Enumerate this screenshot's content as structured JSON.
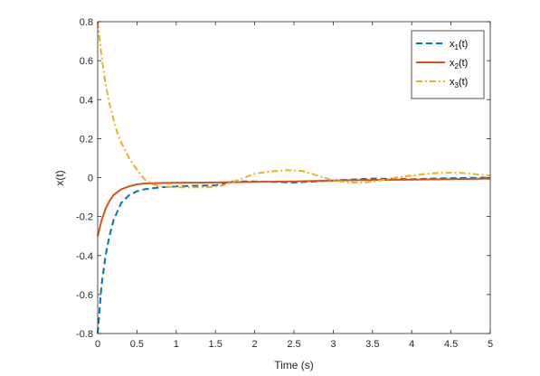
{
  "chart_data": {
    "type": "line",
    "title": "",
    "xlabel": "Time (s)",
    "ylabel": "x(t)",
    "xlim": [
      0,
      5
    ],
    "ylim": [
      -0.8,
      0.8
    ],
    "xticks": [
      "0",
      "0.5",
      "1",
      "1.5",
      "2",
      "2.5",
      "3",
      "3.5",
      "4",
      "4.5",
      "5"
    ],
    "yticks": [
      "-0.8",
      "-0.6",
      "-0.4",
      "-0.2",
      "0",
      "0.2",
      "0.4",
      "0.6",
      "0.8"
    ],
    "grid": false,
    "legend_position": "top-right",
    "series": [
      {
        "name_base": "x",
        "name_sub": "1",
        "name_tail": "(t)",
        "color": "#0072BD",
        "style": "dashed",
        "x": [
          0,
          0.05,
          0.1,
          0.15,
          0.2,
          0.3,
          0.4,
          0.5,
          0.6,
          0.8,
          1.0,
          1.2,
          1.5,
          1.7,
          2.0,
          2.5,
          3.0,
          3.5,
          4.0,
          4.5,
          5.0
        ],
        "y": [
          -0.8,
          -0.55,
          -0.4,
          -0.3,
          -0.22,
          -0.13,
          -0.09,
          -0.07,
          -0.06,
          -0.05,
          -0.045,
          -0.042,
          -0.04,
          -0.02,
          -0.02,
          -0.025,
          -0.015,
          -0.005,
          -0.008,
          -0.003,
          0.0
        ]
      },
      {
        "name_base": "x",
        "name_sub": "2",
        "name_tail": "(t)",
        "color": "#D95319",
        "style": "solid",
        "x": [
          0,
          0.05,
          0.1,
          0.15,
          0.2,
          0.3,
          0.4,
          0.5,
          0.6,
          0.8,
          1.0,
          1.5,
          2.0,
          2.5,
          3.0,
          3.5,
          4.0,
          4.5,
          5.0
        ],
        "y": [
          -0.3,
          -0.22,
          -0.16,
          -0.12,
          -0.09,
          -0.06,
          -0.045,
          -0.035,
          -0.03,
          -0.028,
          -0.027,
          -0.025,
          -0.022,
          -0.02,
          -0.015,
          -0.012,
          -0.01,
          -0.008,
          -0.005
        ]
      },
      {
        "name_base": "x",
        "name_sub": "3",
        "name_tail": "(t)",
        "color": "#EDB120",
        "style": "dashdot",
        "x": [
          0,
          0.05,
          0.1,
          0.15,
          0.2,
          0.25,
          0.3,
          0.4,
          0.5,
          0.6,
          0.7,
          0.8,
          1.0,
          1.2,
          1.4,
          1.6,
          1.8,
          2.0,
          2.2,
          2.4,
          2.6,
          2.8,
          3.0,
          3.2,
          3.4,
          3.6,
          3.8,
          4.0,
          4.2,
          4.4,
          4.6,
          4.8,
          5.0
        ],
        "y": [
          0.8,
          0.62,
          0.48,
          0.38,
          0.3,
          0.23,
          0.18,
          0.1,
          0.04,
          -0.01,
          -0.035,
          -0.045,
          -0.05,
          -0.05,
          -0.05,
          -0.04,
          -0.01,
          0.02,
          0.032,
          0.038,
          0.035,
          0.01,
          -0.015,
          -0.025,
          -0.025,
          -0.015,
          0.0,
          0.01,
          0.02,
          0.025,
          0.025,
          0.018,
          0.01
        ]
      }
    ]
  }
}
